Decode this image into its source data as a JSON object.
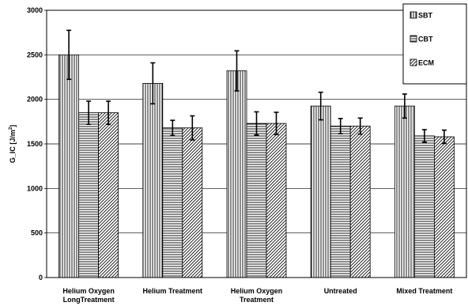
{
  "chart_data": {
    "type": "bar",
    "title": "",
    "xlabel": "",
    "ylabel": "G_IC [J/m",
    "ylabel_sup": "2",
    "ylabel_end": "]",
    "ylim": [
      0,
      3000
    ],
    "yticks": [
      "0",
      "500",
      "1000",
      "1500",
      "2000",
      "2500",
      "3000"
    ],
    "categories": [
      [
        "Helium Oxygen",
        "LongTreatment"
      ],
      [
        "Helium Treatment"
      ],
      [
        "Helium Oxygen",
        "Treatment"
      ],
      [
        "Untreated"
      ],
      [
        "Mixed Treatment"
      ]
    ],
    "series": [
      {
        "name": "SBT",
        "pattern": "vertical",
        "values": [
          2500,
          2180,
          2320,
          1925,
          1925
        ],
        "errors": [
          275,
          230,
          225,
          155,
          135
        ]
      },
      {
        "name": "CBT",
        "pattern": "horizontal",
        "values": [
          1850,
          1680,
          1730,
          1700,
          1590
        ],
        "errors": [
          130,
          85,
          130,
          85,
          70
        ]
      },
      {
        "name": "ECM",
        "pattern": "diagonal",
        "values": [
          1850,
          1680,
          1730,
          1700,
          1580
        ],
        "errors": [
          130,
          135,
          125,
          90,
          75
        ]
      }
    ],
    "grid": "horizontal",
    "legend_position": "top-right",
    "colors": {
      "bar_fill": "#ffffff",
      "stroke": "#000000",
      "grid": "#000000"
    }
  }
}
